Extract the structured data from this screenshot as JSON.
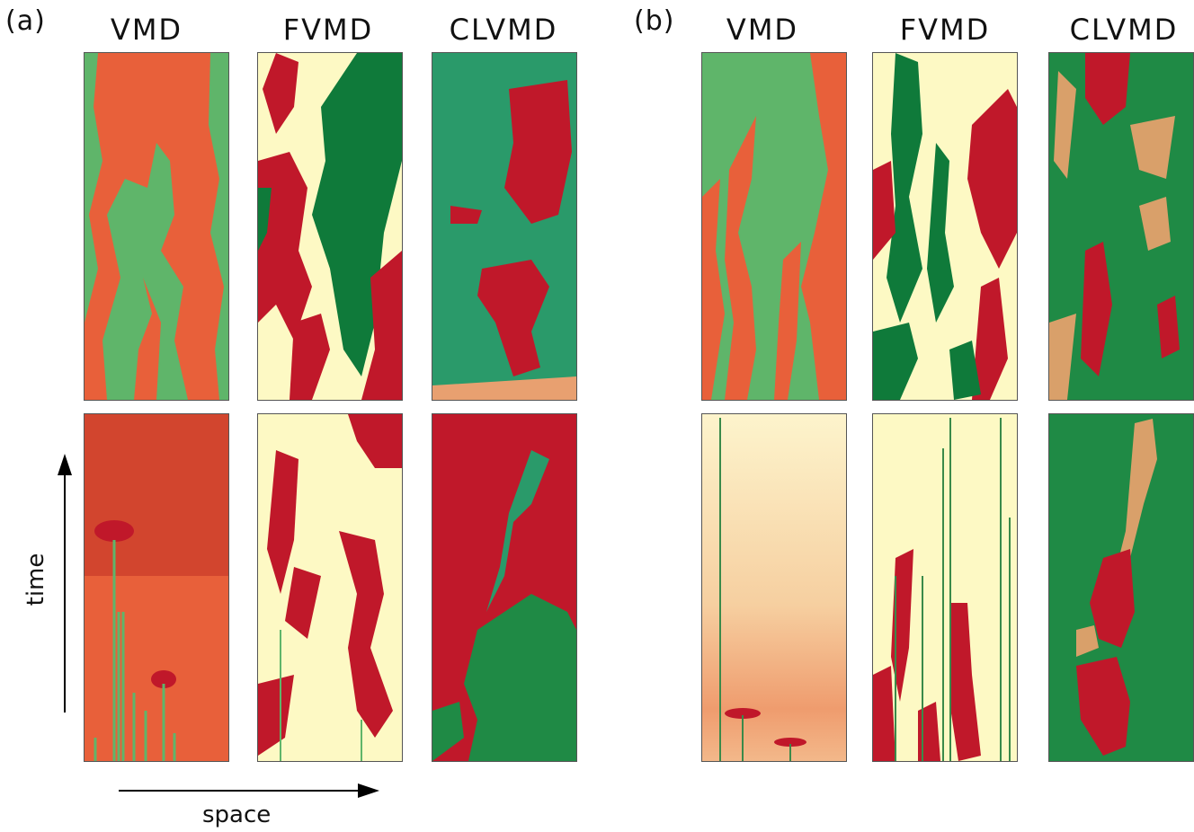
{
  "figure": {
    "panel_a_label": "(a)",
    "panel_b_label": "(b)",
    "columns": [
      "VMD",
      "FVMD",
      "CLVMD"
    ],
    "time_axis_label": "time",
    "space_axis_label": "space"
  },
  "colors": {
    "red": "#c0182a",
    "orange_red": "#e8603a",
    "pale_yellow": "#fdf9c4",
    "light_green": "#5fb56a",
    "dark_green": "#0f7a3a",
    "teal_green": "#2a9a6a"
  },
  "panels": [
    {
      "group": "a",
      "row": "top",
      "column": "VMD",
      "style": "stripes-orange-green"
    },
    {
      "group": "a",
      "row": "top",
      "column": "FVMD",
      "style": "patches-red-green-yellow"
    },
    {
      "group": "a",
      "row": "top",
      "column": "CLVMD",
      "style": "patches-teal-red"
    },
    {
      "group": "a",
      "row": "bottom",
      "column": "VMD",
      "style": "orange-with-spikes"
    },
    {
      "group": "a",
      "row": "bottom",
      "column": "FVMD",
      "style": "red-on-yellow"
    },
    {
      "group": "a",
      "row": "bottom",
      "column": "CLVMD",
      "style": "red-green-domains"
    },
    {
      "group": "b",
      "row": "top",
      "column": "VMD",
      "style": "stripes-green-orange"
    },
    {
      "group": "b",
      "row": "top",
      "column": "FVMD",
      "style": "patches-yellow-green-red"
    },
    {
      "group": "b",
      "row": "top",
      "column": "CLVMD",
      "style": "patches-green-red-mottled"
    },
    {
      "group": "b",
      "row": "bottom",
      "column": "VMD",
      "style": "pale-with-spikes"
    },
    {
      "group": "b",
      "row": "bottom",
      "column": "FVMD",
      "style": "pale-with-red-spikes"
    },
    {
      "group": "b",
      "row": "bottom",
      "column": "CLVMD",
      "style": "green-with-red-band"
    }
  ]
}
